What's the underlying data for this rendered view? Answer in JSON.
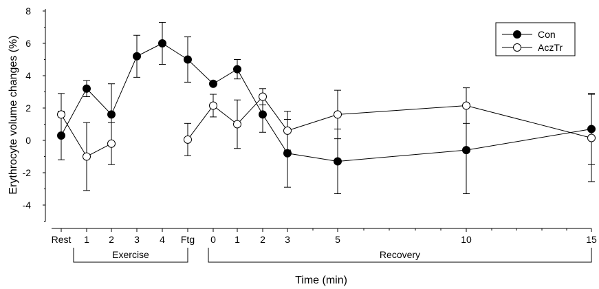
{
  "chart_data": {
    "type": "line",
    "title": "",
    "xlabel": "Time (min)",
    "ylabel": "Erythrocyte volume changes (%)",
    "ylim": [
      -5,
      8
    ],
    "yticks": [
      "-4",
      "-2",
      "0",
      "2",
      "4",
      "6",
      "8"
    ],
    "yticks_values": [
      -4,
      -2,
      0,
      2,
      4,
      6,
      8
    ],
    "categories": [
      "Rest",
      "1",
      "2",
      "3",
      "4",
      "Ftg",
      "0",
      "1",
      "2",
      "3",
      "5",
      "10",
      "15"
    ],
    "groups": [
      {
        "label": "Exercise",
        "from": "1",
        "to": "Ftg"
      },
      {
        "label": "Recovery",
        "from": "0",
        "to": "15"
      }
    ],
    "legend_position": "top-right",
    "grid": false,
    "series": [
      {
        "name": "Con",
        "marker": "filled-circle",
        "values": [
          0.3,
          3.2,
          1.6,
          5.2,
          6.0,
          5.0,
          3.5,
          4.4,
          1.6,
          -0.8,
          -1.3,
          -0.6,
          0.7
        ],
        "errors": [
          1.5,
          0.5,
          1.9,
          1.3,
          1.3,
          1.4,
          0.1,
          0.6,
          1.1,
          2.1,
          2.0,
          2.7,
          2.2
        ],
        "segments": [
          [
            0,
            12
          ]
        ]
      },
      {
        "name": "AczTr",
        "marker": "open-circle",
        "values": [
          1.6,
          -1.0,
          -0.2,
          null,
          null,
          0.05,
          2.15,
          1.0,
          2.7,
          0.6,
          1.6,
          2.15,
          0.15
        ],
        "errors": [
          1.3,
          2.1,
          1.3,
          null,
          null,
          1.0,
          0.7,
          1.5,
          0.5,
          1.2,
          1.5,
          1.1,
          2.7
        ],
        "segments": [
          [
            0,
            2
          ],
          [
            5,
            12
          ]
        ]
      }
    ]
  }
}
